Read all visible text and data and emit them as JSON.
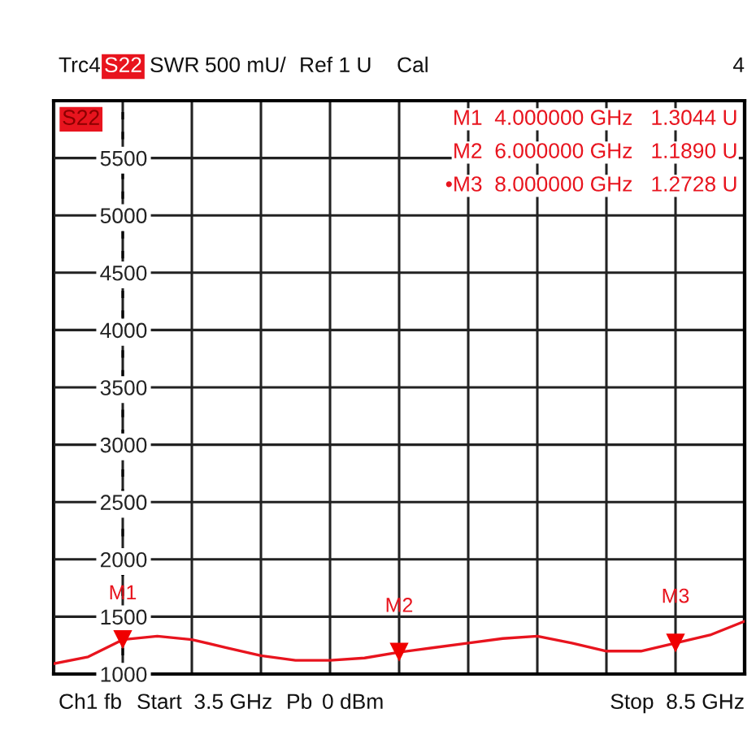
{
  "chart_data": {
    "type": "line",
    "annotations": [
      "Trc4",
      "S22",
      "SWR",
      "500 mU/",
      "Ref 1 U",
      "Cal",
      "4",
      "S22",
      "M1  4.000000 GHz   1.3044 U",
      "M2  6.000000 GHz   1.1890 U",
      "•M3  8.000000 GHz   1.2728 U",
      "Ch1",
      "fb",
      "Start  3.5 GHz",
      "Pb",
      "0 dBm",
      "Stop  8.5 GHz",
      "M1",
      "M2",
      "M3"
    ],
    "categories": [
      null,
      null,
      null,
      null,
      null,
      null,
      null,
      null,
      null,
      null,
      null,
      null,
      null,
      null,
      null,
      null,
      null,
      null,
      null,
      null,
      null
    ],
    "series": [
      {
        "color": "#e8141e",
        "values": [
          1090,
          1150,
          1300,
          1330,
          1300,
          1230,
          1160,
          1120,
          1120,
          1140,
          1190,
          1230,
          1270,
          1310,
          1330,
          1270,
          1200,
          1200,
          1270,
          1340,
          1460
        ]
      },
      {
        "type": "scatter",
        "marker": "triangle",
        "color": "#f00000",
        "values": [
          null,
          null,
          1300,
          null,
          null,
          null,
          null,
          null,
          null,
          null,
          1190,
          null,
          null,
          null,
          null,
          null,
          null,
          null,
          1270,
          null,
          null
        ]
      }
    ],
    "ylim": [
      1000,
      6000
    ],
    "yticks": [
      1000,
      1500,
      2000,
      2500,
      3000,
      3500,
      4000,
      4500,
      5000,
      5500
    ],
    "grid": true,
    "tick_labels": "y"
  }
}
